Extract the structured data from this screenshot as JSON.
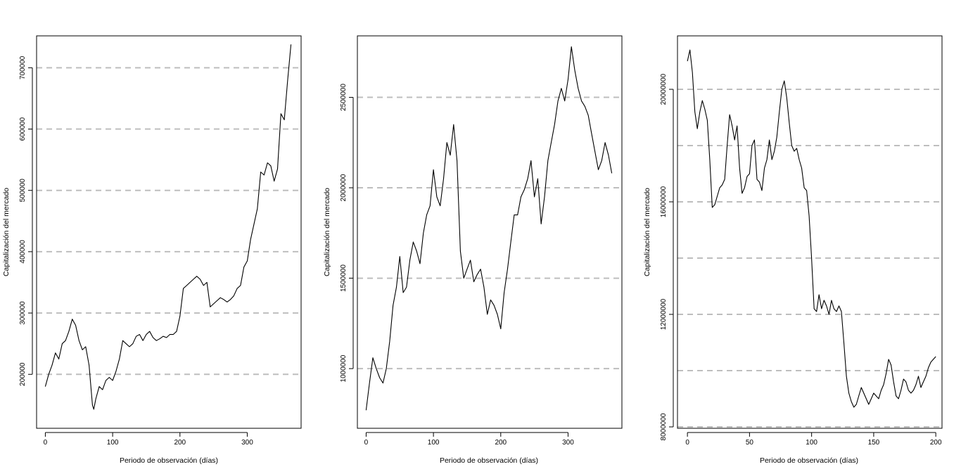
{
  "chart_data": [
    {
      "type": "line",
      "xlabel": "Periodo de observación (días)",
      "ylabel": "Capitalización del mercado",
      "xlim": [
        -13,
        380
      ],
      "ylim": [
        112000,
        752000
      ],
      "xticks": [
        0,
        100,
        200,
        300
      ],
      "yticks": [
        200000,
        300000,
        400000,
        500000,
        600000,
        700000
      ],
      "hlines": [
        200000,
        300000,
        400000,
        500000,
        600000,
        700000
      ],
      "grid": "dashed horizontal lines at y-ticks",
      "series": [
        {
          "x": [
            0,
            5,
            10,
            15,
            20,
            25,
            30,
            35,
            40,
            45,
            50,
            55,
            60,
            65,
            70,
            72,
            75,
            80,
            85,
            90,
            95,
            100,
            105,
            110,
            115,
            120,
            125,
            130,
            135,
            140,
            145,
            150,
            155,
            160,
            165,
            170,
            175,
            180,
            185,
            190,
            195,
            200,
            205,
            210,
            215,
            220,
            225,
            230,
            235,
            240,
            245,
            250,
            255,
            260,
            265,
            270,
            275,
            280,
            285,
            290,
            295,
            300,
            305,
            310,
            315,
            320,
            325,
            330,
            335,
            340,
            345,
            350,
            355,
            360,
            365
          ],
          "y": [
            180000,
            200000,
            215000,
            235000,
            225000,
            250000,
            255000,
            270000,
            290000,
            280000,
            255000,
            240000,
            245000,
            215000,
            150000,
            143000,
            160000,
            180000,
            175000,
            190000,
            195000,
            190000,
            205000,
            225000,
            255000,
            250000,
            245000,
            250000,
            262000,
            265000,
            255000,
            265000,
            270000,
            260000,
            255000,
            258000,
            262000,
            260000,
            265000,
            265000,
            270000,
            295000,
            340000,
            345000,
            350000,
            355000,
            360000,
            355000,
            345000,
            350000,
            310000,
            315000,
            320000,
            325000,
            322000,
            318000,
            322000,
            328000,
            340000,
            345000,
            375000,
            385000,
            420000,
            445000,
            470000,
            530000,
            525000,
            545000,
            540000,
            515000,
            535000,
            625000,
            615000,
            680000,
            738000
          ]
        }
      ]
    },
    {
      "type": "line",
      "xlabel": "Periodo de observación (días)",
      "ylabel": "Capitalización del mercado",
      "xlim": [
        -13,
        380
      ],
      "ylim": [
        670000,
        2840000
      ],
      "xticks": [
        0,
        100,
        200,
        300
      ],
      "yticks": [
        1000000,
        1500000,
        2000000,
        2500000
      ],
      "hlines": [
        1000000,
        1500000,
        2000000,
        2500000
      ],
      "grid": "dashed horizontal lines at y-ticks",
      "series": [
        {
          "x": [
            0,
            5,
            10,
            15,
            20,
            25,
            30,
            35,
            40,
            45,
            50,
            55,
            60,
            65,
            70,
            75,
            80,
            85,
            90,
            95,
            100,
            105,
            110,
            115,
            120,
            125,
            130,
            135,
            140,
            145,
            150,
            155,
            160,
            165,
            170,
            175,
            180,
            185,
            190,
            195,
            200,
            205,
            210,
            215,
            220,
            225,
            230,
            235,
            240,
            245,
            250,
            255,
            260,
            265,
            270,
            275,
            280,
            285,
            290,
            295,
            300,
            305,
            310,
            315,
            320,
            325,
            330,
            335,
            340,
            345,
            350,
            355,
            360,
            365
          ],
          "y": [
            770000,
            920000,
            1060000,
            1000000,
            950000,
            920000,
            1000000,
            1150000,
            1350000,
            1450000,
            1620000,
            1420000,
            1450000,
            1600000,
            1700000,
            1650000,
            1580000,
            1750000,
            1850000,
            1900000,
            2100000,
            1950000,
            1900000,
            2050000,
            2250000,
            2180000,
            2350000,
            2150000,
            1650000,
            1500000,
            1550000,
            1600000,
            1480000,
            1520000,
            1550000,
            1450000,
            1300000,
            1380000,
            1350000,
            1300000,
            1220000,
            1420000,
            1550000,
            1700000,
            1850000,
            1850000,
            1950000,
            1990000,
            2050000,
            2150000,
            1950000,
            2050000,
            1800000,
            1950000,
            2150000,
            2250000,
            2350000,
            2480000,
            2550000,
            2480000,
            2600000,
            2780000,
            2650000,
            2550000,
            2480000,
            2450000,
            2400000,
            2300000,
            2200000,
            2100000,
            2150000,
            2250000,
            2180000,
            2080000
          ]
        }
      ]
    },
    {
      "type": "line",
      "xlabel": "Periodo de observación (días)",
      "ylabel": "Capitalización del mercado",
      "xlim": [
        -8,
        205
      ],
      "ylim": [
        7950000,
        21900000
      ],
      "xticks": [
        0,
        50,
        100,
        150,
        200
      ],
      "yticks": [
        8000000,
        12000000,
        16000000,
        20000000
      ],
      "hlines": [
        8000000,
        10000000,
        12000000,
        14000000,
        16000000,
        18000000,
        20000000
      ],
      "grid": "dashed horizontal lines at y-ticks",
      "series": [
        {
          "x": [
            0,
            2,
            4,
            6,
            8,
            10,
            12,
            14,
            16,
            18,
            20,
            22,
            24,
            26,
            28,
            30,
            32,
            34,
            36,
            38,
            40,
            42,
            44,
            46,
            48,
            50,
            52,
            54,
            56,
            58,
            60,
            62,
            64,
            66,
            68,
            70,
            72,
            74,
            76,
            78,
            80,
            82,
            84,
            86,
            88,
            90,
            92,
            94,
            96,
            98,
            100,
            102,
            104,
            106,
            108,
            110,
            112,
            114,
            116,
            118,
            120,
            122,
            124,
            126,
            128,
            130,
            132,
            134,
            136,
            138,
            140,
            142,
            144,
            146,
            148,
            150,
            152,
            154,
            156,
            158,
            160,
            162,
            164,
            166,
            168,
            170,
            172,
            174,
            176,
            178,
            180,
            182,
            184,
            186,
            188,
            190,
            192,
            194,
            196,
            198,
            200
          ],
          "y": [
            21000000,
            21400000,
            20600000,
            19200000,
            18600000,
            19200000,
            19600000,
            19300000,
            18900000,
            17500000,
            15800000,
            15900000,
            16200000,
            16500000,
            16600000,
            16800000,
            18000000,
            19100000,
            18700000,
            18200000,
            18700000,
            17200000,
            16300000,
            16500000,
            16900000,
            17000000,
            18000000,
            18200000,
            16800000,
            16700000,
            16400000,
            17200000,
            17500000,
            18200000,
            17500000,
            17800000,
            18300000,
            19200000,
            20000000,
            20300000,
            19700000,
            18800000,
            18000000,
            17800000,
            17900000,
            17500000,
            17200000,
            16500000,
            16400000,
            15500000,
            14000000,
            12200000,
            12100000,
            12700000,
            12200000,
            12500000,
            12300000,
            12000000,
            12500000,
            12200000,
            12100000,
            12300000,
            12100000,
            11000000,
            9800000,
            9200000,
            8900000,
            8700000,
            8800000,
            9100000,
            9400000,
            9200000,
            9000000,
            8800000,
            9000000,
            9200000,
            9100000,
            9000000,
            9300000,
            9500000,
            9900000,
            10400000,
            10200000,
            9600000,
            9100000,
            9000000,
            9300000,
            9700000,
            9600000,
            9300000,
            9200000,
            9300000,
            9500000,
            9800000,
            9400000,
            9600000,
            9800000,
            10100000,
            10300000,
            10400000,
            10500000
          ]
        }
      ]
    }
  ],
  "colors": {
    "line": "#000000",
    "grid": "#bebebe",
    "axis": "#000000",
    "background": "#ffffff"
  }
}
